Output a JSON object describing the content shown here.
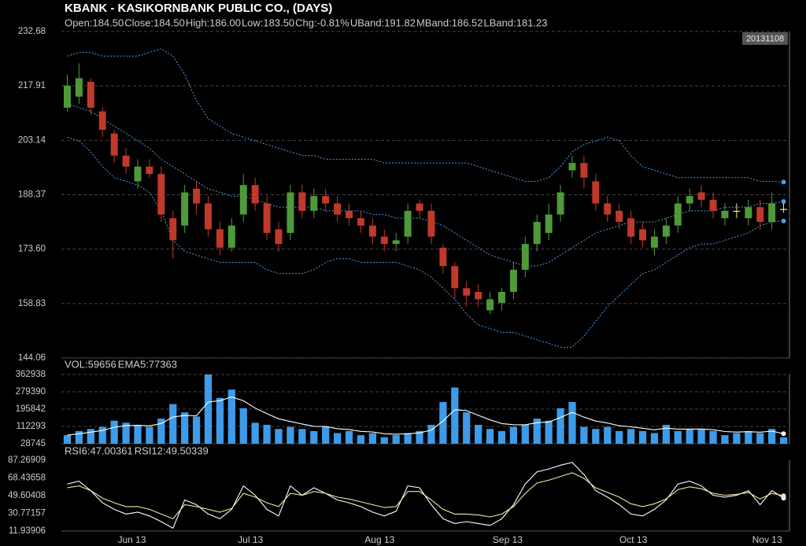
{
  "chart_data": [
    {
      "type": "candlestick",
      "title": "KBANK - KASIKORNBANK PUBLIC CO., (DAYS)",
      "date_label": "20131108",
      "readout": [
        {
          "text": "Open:184.50",
          "color": "#ffffff"
        },
        {
          "text": "Close:184.50",
          "color": "#ffffff"
        },
        {
          "text": "High:186.00",
          "color": "#4caf50"
        },
        {
          "text": "Low:183.50",
          "color": "#e04848"
        },
        {
          "text": "Chg:-0.81%",
          "color": "#e04848"
        },
        {
          "text": "UBand:191.82",
          "color": "#4a9ee8"
        },
        {
          "text": "MBand:186.52",
          "color": "#4a9ee8"
        },
        {
          "text": "LBand:181.23",
          "color": "#4a9ee8"
        }
      ],
      "up_color": "#4e9a3a",
      "down_color": "#c0392b",
      "flat_color": "#f5e6a0",
      "xlim": [
        0,
        62
      ],
      "ylim": [
        144.06,
        232.68
      ],
      "yticks": [
        144.06,
        158.83,
        {
          "value": 173.6,
          "label": "173.60"
        },
        188.37,
        203.14,
        217.91,
        232.68
      ],
      "grid": true,
      "open": [
        212,
        215,
        219,
        211,
        205,
        199,
        192,
        196,
        194,
        182,
        180,
        190,
        186,
        179,
        174,
        183,
        191,
        186,
        179,
        178,
        189,
        184,
        188,
        186,
        184,
        182,
        180,
        177,
        175,
        177,
        186,
        184,
        174,
        169,
        163,
        162,
        157,
        159,
        162,
        168,
        175,
        178,
        183,
        195,
        197,
        192,
        186,
        184,
        182,
        179,
        174,
        177,
        180,
        186,
        189,
        187,
        182,
        184,
        182,
        185,
        181,
        184.5
      ],
      "high": [
        221,
        224,
        220,
        212,
        206,
        201,
        198,
        198,
        196,
        184,
        191,
        192,
        188,
        181,
        182,
        194,
        193,
        188,
        181,
        191,
        191,
        190,
        190,
        188,
        186,
        184,
        182,
        179,
        178,
        186,
        187,
        186,
        175,
        170,
        165,
        164,
        162,
        163,
        170,
        177,
        183,
        186,
        191,
        199,
        199,
        194,
        188,
        186,
        184,
        181,
        179,
        182,
        188,
        190,
        191,
        189,
        186,
        186,
        187,
        187,
        189,
        186
      ],
      "low": [
        211,
        213,
        210,
        204,
        197,
        194,
        190,
        193,
        181,
        171,
        178,
        183,
        177,
        172,
        173,
        181,
        184,
        176,
        173,
        176,
        182,
        182,
        184,
        181,
        180,
        178,
        175,
        173,
        173,
        175,
        182,
        175,
        167,
        160,
        158,
        158,
        156,
        157,
        160,
        166,
        173,
        176,
        181,
        193,
        190,
        184,
        181,
        179,
        175,
        174,
        172,
        175,
        178,
        184,
        185,
        182,
        180,
        182,
        180,
        179,
        179,
        183.5
      ],
      "close": [
        218,
        220,
        212,
        206,
        199,
        196,
        196,
        194,
        183,
        176,
        189,
        186,
        179,
        174,
        180,
        191,
        186,
        178,
        175,
        189,
        184,
        188,
        186,
        183,
        182,
        180,
        177,
        175,
        176,
        184,
        184,
        177,
        169,
        163,
        161,
        160,
        160,
        162,
        168,
        175,
        181,
        183,
        189,
        197,
        193,
        186,
        183,
        181,
        177,
        176,
        177,
        180,
        186,
        188,
        187,
        184,
        184,
        184,
        185,
        181,
        186,
        184.5
      ],
      "series": [
        {
          "color": "#4a9ee8",
          "values": [
            226,
            227,
            227,
            226,
            226,
            226,
            226,
            227,
            228,
            226,
            221,
            214,
            209,
            207,
            205,
            204,
            203,
            202,
            201,
            200,
            199,
            199,
            198,
            198,
            198,
            198,
            198,
            197,
            197,
            197,
            197,
            197,
            197,
            197,
            197,
            196,
            195,
            194,
            193,
            192,
            192,
            193,
            196,
            200,
            202,
            203,
            204,
            203,
            199,
            196,
            195,
            194,
            193,
            193,
            193,
            193,
            193,
            193,
            193,
            192,
            192,
            191.82
          ]
        },
        {
          "color": "#4a9ee8",
          "values": [
            213,
            212,
            211,
            209,
            207,
            205,
            203,
            201,
            198,
            196,
            194,
            192,
            190,
            189,
            188,
            188,
            187,
            186,
            185,
            185,
            185,
            185,
            184,
            184,
            184,
            184,
            183,
            183,
            182,
            182,
            182,
            181,
            180,
            178,
            176,
            174,
            172,
            171,
            170,
            169,
            169,
            170,
            172,
            174,
            176,
            178,
            179,
            180,
            181,
            181,
            181,
            182,
            183,
            184,
            184,
            184,
            185,
            185,
            185,
            186,
            186,
            186.52
          ]
        },
        {
          "color": "#4a9ee8",
          "values": [
            204,
            203,
            200,
            196,
            193,
            192,
            191,
            189,
            184,
            176,
            173,
            172,
            171,
            170,
            170,
            170,
            170,
            168,
            167,
            167,
            167,
            168,
            170,
            171,
            171,
            170,
            170,
            170,
            170,
            169,
            168,
            166,
            163,
            160,
            156,
            153,
            152,
            151,
            151,
            150,
            149,
            148,
            147,
            147,
            150,
            154,
            158,
            161,
            164,
            167,
            168,
            170,
            172,
            174,
            175,
            175,
            176,
            177,
            178,
            180,
            181,
            181.23
          ]
        }
      ]
    },
    {
      "type": "bar",
      "readout": [
        {
          "text": "VOL:59656",
          "color": "#4a9ee8"
        },
        {
          "text": "EMA5:77363",
          "color": "#4a9ee8"
        }
      ],
      "color": "#3d9be9",
      "xlim": [
        0,
        62
      ],
      "ylim": [
        28745,
        362938
      ],
      "yticks": [
        28745,
        112293,
        195842,
        279390,
        362938
      ],
      "grid": true,
      "values": [
        70000,
        90000,
        100000,
        110000,
        140000,
        130000,
        120000,
        110000,
        150000,
        220000,
        180000,
        160000,
        362938,
        250000,
        290000,
        200000,
        130000,
        120000,
        100000,
        110000,
        100000,
        90000,
        110000,
        80000,
        90000,
        70000,
        80000,
        60000,
        70000,
        80000,
        90000,
        120000,
        230000,
        300000,
        180000,
        120000,
        100000,
        90000,
        110000,
        120000,
        150000,
        140000,
        200000,
        230000,
        110000,
        100000,
        110000,
        90000,
        100000,
        90000,
        80000,
        120000,
        90000,
        100000,
        100000,
        90000,
        70000,
        80000,
        90000,
        80000,
        100000,
        59656
      ],
      "series": [
        {
          "color": "#ffffff",
          "values": [
            70000,
            76667,
            84444,
            92963,
            108642,
            115761,
            117174,
            114783,
            126522,
            157681,
            165121,
            163414,
            229943,
            236629,
            254419,
            236279,
            200853,
            173902,
            149268,
            136179,
            124119,
            112746,
            111831,
            101221,
            97480,
            88320,
            85547,
            77031,
            74688,
            76459,
            80972,
            93981,
            139321,
            192881,
            188587,
            165725,
            143817,
            125878,
            120585,
            120390,
            130260,
            133507,
            155671,
            180447,
            156965,
            137977,
            128651,
            115767,
            110511,
            103674,
            95783,
            103855,
            99237,
            99491,
            99661,
            96441,
            87627,
            85085,
            86723,
            84482,
            89655,
            77363
          ]
        }
      ]
    },
    {
      "type": "line",
      "readout": [
        {
          "text": "RSI6:47.00361",
          "color": "#ffffff"
        },
        {
          "text": "RSI12:49.50339",
          "color": "#f5e6a0"
        }
      ],
      "xlim": [
        0,
        62
      ],
      "xticks": [
        {
          "value": 6,
          "label": "Jun 13"
        },
        {
          "value": 16.1,
          "label": "Jul 13"
        },
        {
          "value": 27.1,
          "label": "Aug 13"
        },
        {
          "value": 38,
          "label": "Sep 13"
        },
        {
          "value": 48.7,
          "label": "Oct 13"
        },
        {
          "value": 60.1,
          "label": "Nov 13"
        }
      ],
      "ylim": [
        11.93906,
        87.26909
      ],
      "yticks": [
        11.93906,
        30.77157,
        49.60408,
        68.43658,
        87.26909
      ],
      "grid": false,
      "series": [
        {
          "color": "#ffffff",
          "values": [
            62,
            65,
            55,
            42,
            35,
            30,
            32,
            28,
            22,
            15,
            45,
            40,
            30,
            25,
            35,
            60,
            50,
            35,
            28,
            60,
            50,
            58,
            52,
            45,
            42,
            38,
            32,
            28,
            33,
            60,
            58,
            40,
            25,
            20,
            22,
            20,
            18,
            25,
            40,
            62,
            75,
            78,
            82,
            85,
            72,
            55,
            48,
            40,
            30,
            28,
            35,
            45,
            62,
            65,
            60,
            50,
            48,
            50,
            55,
            40,
            55,
            47.00361
          ]
        },
        {
          "color": "#f5e6a0",
          "values": [
            58,
            60,
            55,
            47,
            42,
            38,
            38,
            35,
            30,
            25,
            40,
            38,
            35,
            32,
            36,
            52,
            48,
            42,
            38,
            52,
            50,
            54,
            52,
            48,
            46,
            43,
            40,
            37,
            38,
            54,
            54,
            45,
            35,
            30,
            30,
            29,
            27,
            30,
            38,
            52,
            63,
            66,
            70,
            74,
            68,
            58,
            53,
            48,
            41,
            38,
            41,
            46,
            56,
            59,
            57,
            52,
            50,
            51,
            53,
            46,
            52,
            49.50339
          ]
        }
      ]
    }
  ]
}
